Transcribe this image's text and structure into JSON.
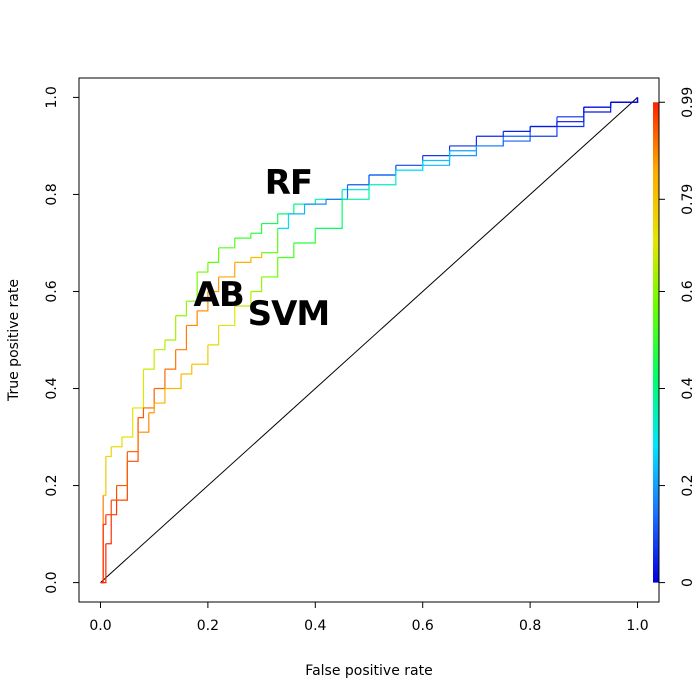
{
  "chart_data": {
    "type": "line",
    "title": "",
    "xlabel": "False positive rate",
    "ylabel": "True positive rate",
    "xlim": [
      -0.04,
      1.04
    ],
    "ylim": [
      -0.04,
      1.04
    ],
    "x_ticks": [
      "0.0",
      "0.2",
      "0.4",
      "0.6",
      "0.8",
      "1.0"
    ],
    "y_ticks": [
      "0.0",
      "0.2",
      "0.4",
      "0.6",
      "0.8",
      "1.0"
    ],
    "grid": false,
    "colorbar": {
      "orientation": "vertical",
      "placement": "right",
      "colormap": "rainbow",
      "colors": [
        "#0000dd",
        "#1e6fff",
        "#00e5ff",
        "#00ff66",
        "#66ff00",
        "#e5e500",
        "#ffaa00",
        "#ff2200"
      ],
      "ticks": [
        "0",
        "0.2",
        "0.4",
        "0.6",
        "0.79",
        "0.99"
      ],
      "tick_values": [
        0,
        0.2,
        0.4,
        0.6,
        0.79,
        0.99
      ]
    },
    "diagonal": [
      [
        0,
        0
      ],
      [
        1,
        1
      ]
    ],
    "series": [
      {
        "name": "RF",
        "label_at": [
          0.35,
          0.82
        ],
        "x": [
          0,
          0.005,
          0.01,
          0.02,
          0.04,
          0.06,
          0.08,
          0.1,
          0.12,
          0.14,
          0.16,
          0.18,
          0.2,
          0.22,
          0.25,
          0.28,
          0.3,
          0.33,
          0.36,
          0.4,
          0.45,
          0.5,
          0.55,
          0.6,
          0.65,
          0.7,
          0.75,
          0.8,
          0.85,
          0.9,
          0.95,
          1.0
        ],
        "values": [
          0,
          0.18,
          0.26,
          0.28,
          0.3,
          0.36,
          0.44,
          0.48,
          0.5,
          0.55,
          0.58,
          0.64,
          0.66,
          0.69,
          0.71,
          0.72,
          0.74,
          0.76,
          0.78,
          0.79,
          0.81,
          0.84,
          0.85,
          0.86,
          0.88,
          0.9,
          0.92,
          0.94,
          0.96,
          0.98,
          0.99,
          1.0
        ],
        "thresholds": [
          0.99,
          0.8,
          0.75,
          0.74,
          0.72,
          0.7,
          0.69,
          0.66,
          0.65,
          0.63,
          0.6,
          0.58,
          0.56,
          0.55,
          0.52,
          0.5,
          0.47,
          0.44,
          0.4,
          0.37,
          0.33,
          0.3,
          0.27,
          0.24,
          0.21,
          0.18,
          0.14,
          0.1,
          0.07,
          0.04,
          0.02,
          0
        ]
      },
      {
        "name": "AB",
        "label_at": [
          0.22,
          0.59
        ],
        "x": [
          0,
          0.01,
          0.02,
          0.03,
          0.05,
          0.07,
          0.08,
          0.1,
          0.12,
          0.14,
          0.16,
          0.18,
          0.2,
          0.22,
          0.25,
          0.28,
          0.3,
          0.33,
          0.35,
          0.38,
          0.42,
          0.46,
          0.5,
          0.55,
          0.6,
          0.65,
          0.7,
          0.75,
          0.8,
          0.85,
          0.9,
          0.95,
          1.0
        ],
        "values": [
          0,
          0.08,
          0.14,
          0.17,
          0.25,
          0.34,
          0.36,
          0.4,
          0.44,
          0.48,
          0.53,
          0.56,
          0.6,
          0.63,
          0.66,
          0.67,
          0.68,
          0.73,
          0.76,
          0.78,
          0.79,
          0.82,
          0.84,
          0.86,
          0.88,
          0.9,
          0.92,
          0.93,
          0.94,
          0.95,
          0.98,
          0.99,
          1.0
        ],
        "thresholds": [
          0.99,
          0.98,
          0.97,
          0.96,
          0.95,
          0.94,
          0.93,
          0.92,
          0.91,
          0.9,
          0.89,
          0.88,
          0.87,
          0.86,
          0.85,
          0.82,
          0.78,
          0.3,
          0.25,
          0.2,
          0.15,
          0.12,
          0.1,
          0.09,
          0.08,
          0.07,
          0.06,
          0.05,
          0.04,
          0.03,
          0.02,
          0.01,
          0
        ]
      },
      {
        "name": "SVM",
        "label_at": [
          0.35,
          0.55
        ],
        "x": [
          0,
          0.005,
          0.01,
          0.02,
          0.03,
          0.05,
          0.07,
          0.09,
          0.1,
          0.12,
          0.15,
          0.17,
          0.2,
          0.22,
          0.25,
          0.28,
          0.3,
          0.33,
          0.36,
          0.4,
          0.45,
          0.5,
          0.55,
          0.6,
          0.65,
          0.7,
          0.75,
          0.8,
          0.85,
          0.9,
          0.95,
          1.0
        ],
        "values": [
          0,
          0.12,
          0.14,
          0.17,
          0.2,
          0.27,
          0.31,
          0.35,
          0.37,
          0.4,
          0.43,
          0.45,
          0.49,
          0.53,
          0.57,
          0.6,
          0.63,
          0.67,
          0.7,
          0.73,
          0.79,
          0.82,
          0.85,
          0.87,
          0.89,
          0.9,
          0.91,
          0.92,
          0.94,
          0.97,
          0.99,
          1.0
        ],
        "thresholds": [
          0.99,
          0.97,
          0.96,
          0.95,
          0.94,
          0.92,
          0.9,
          0.87,
          0.85,
          0.82,
          0.8,
          0.78,
          0.75,
          0.72,
          0.68,
          0.64,
          0.6,
          0.55,
          0.5,
          0.45,
          0.4,
          0.35,
          0.3,
          0.26,
          0.22,
          0.18,
          0.14,
          0.1,
          0.07,
          0.05,
          0.02,
          0
        ]
      }
    ]
  }
}
